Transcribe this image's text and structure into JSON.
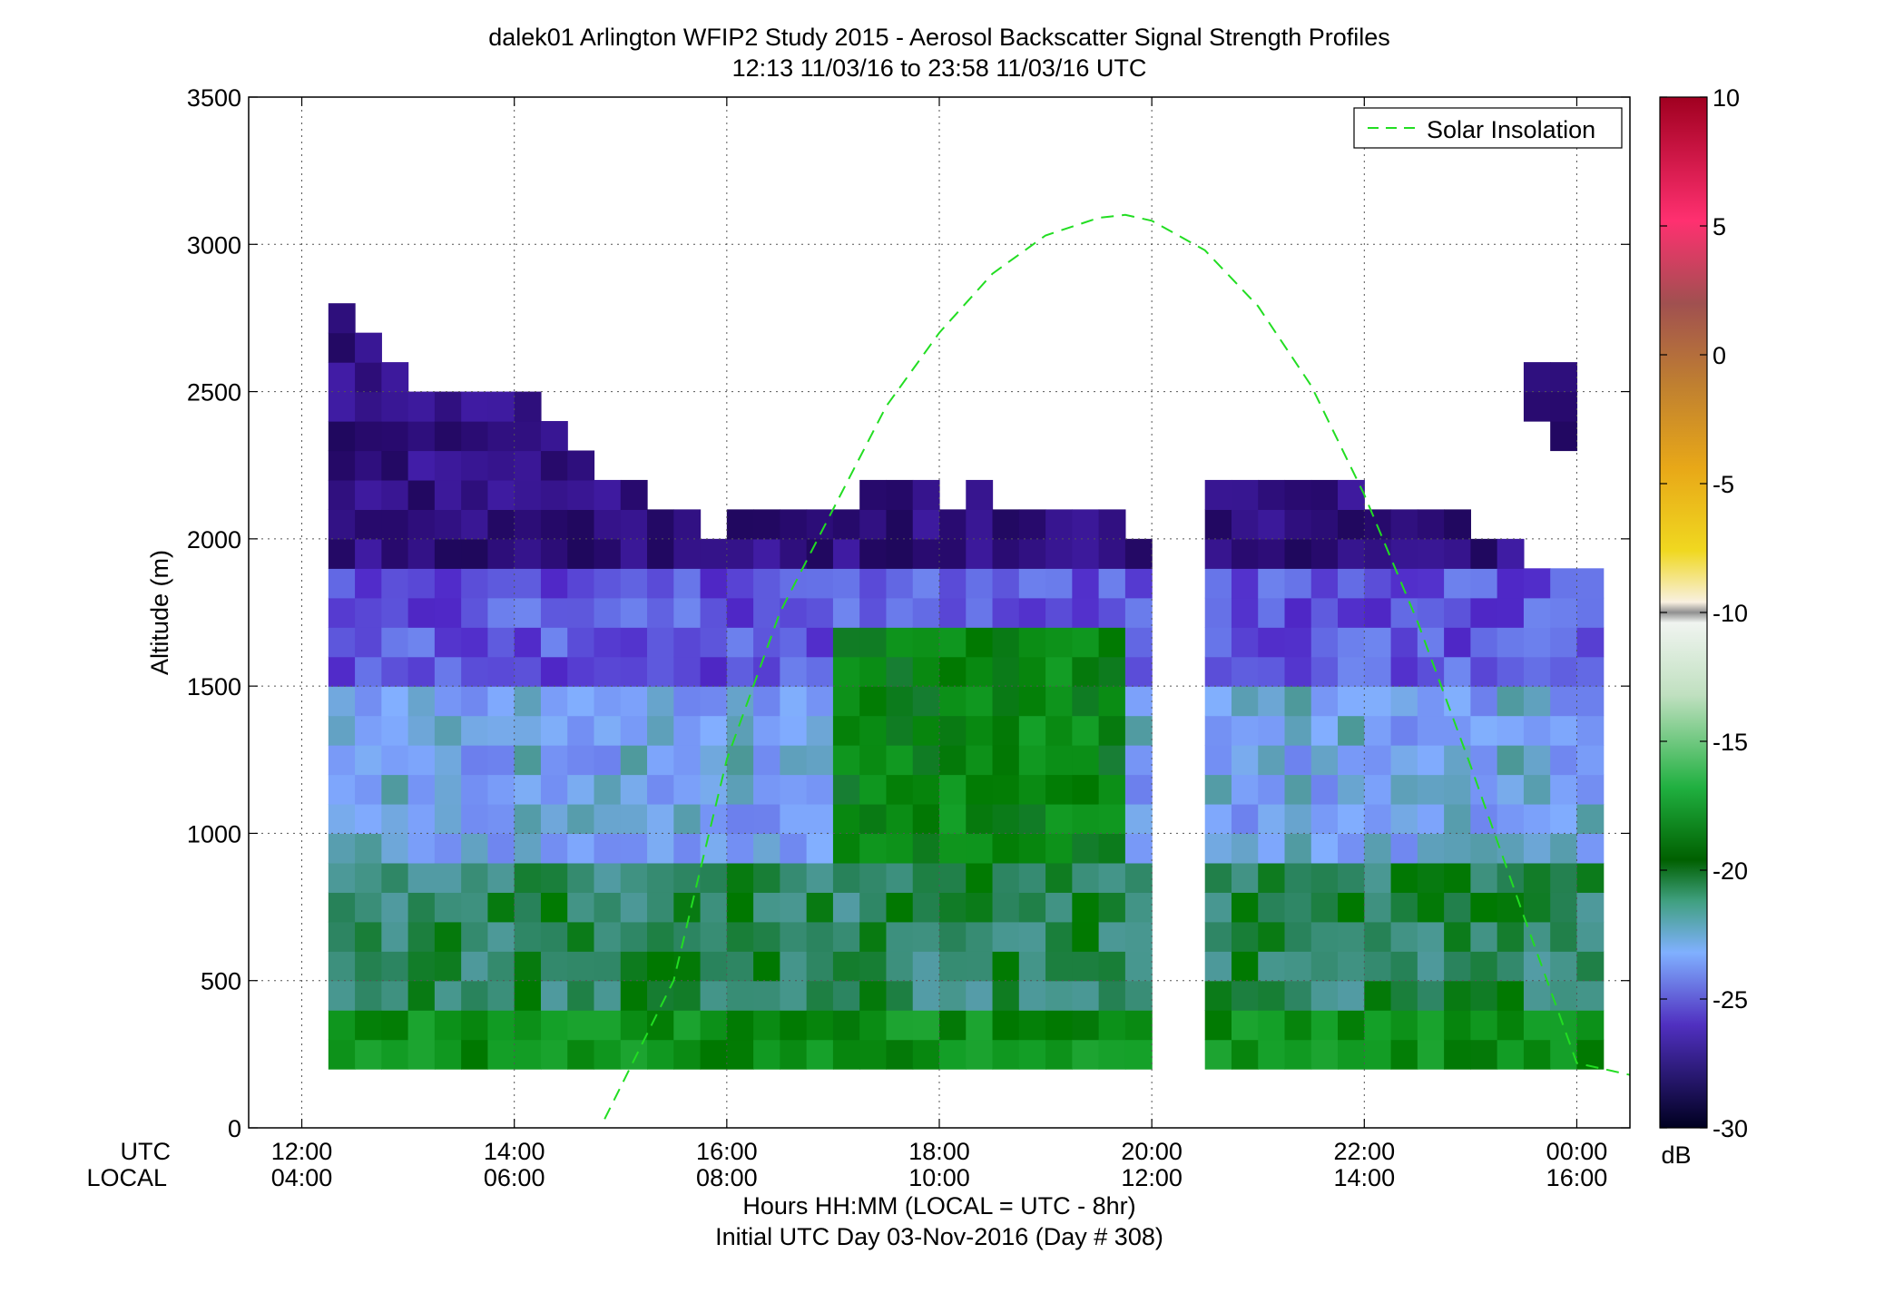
{
  "chart_data": {
    "type": "heatmap",
    "title": "dalek01 Arlington WFIP2 Study 2015 - Aerosol Backscatter Signal Strength Profiles",
    "subtitle": "12:13 11/03/16 to 23:58 11/03/16  UTC",
    "xlabel": "Hours HH:MM  (LOCAL = UTC - 8hr)",
    "xlabel2": "Initial UTC Day 03-Nov-2016 (Day # 308)",
    "ylabel": "Altitude (m)",
    "xlim_hours": [
      11.5,
      24.5
    ],
    "ylim": [
      0,
      3500
    ],
    "y_ticks": [
      0,
      500,
      1000,
      1500,
      2000,
      2500,
      3000,
      3500
    ],
    "x_ticks_hours": [
      12,
      14,
      16,
      18,
      20,
      22,
      24
    ],
    "x_tick_row_labels": {
      "utc": "UTC",
      "local": "LOCAL"
    },
    "x_tick_labels_utc": [
      "12:00",
      "14:00",
      "16:00",
      "18:00",
      "20:00",
      "22:00",
      "00:00"
    ],
    "x_tick_labels_local": [
      "04:00",
      "06:00",
      "08:00",
      "10:00",
      "12:00",
      "14:00",
      "16:00"
    ],
    "grid": true,
    "legend": {
      "position": "top-right",
      "entries": [
        {
          "name": "Solar Insolation",
          "style": "dashed",
          "color": "#22dd22"
        }
      ]
    },
    "colorbar": {
      "label": "dB",
      "range": [
        -30,
        10
      ],
      "ticks": [
        10,
        5,
        0,
        -5,
        -10,
        -15,
        -20,
        -25,
        -30
      ],
      "tick_labels": [
        "10",
        "5",
        "0",
        "-5",
        "-10",
        "-15",
        "-20",
        "-25",
        "-30"
      ]
    },
    "heatmap": {
      "x_start_hour": 12.25,
      "x_step_hours": 0.25,
      "y_start_m": 200,
      "y_step_m": 100,
      "missing_columns_hours": [
        19.75,
        20.0
      ],
      "column_top_m": [
        2800,
        2700,
        2600,
        2500,
        2500,
        2500,
        2500,
        2500,
        2400,
        2300,
        2200,
        2200,
        2100,
        2100,
        2000,
        2100,
        2100,
        2100,
        2100,
        2100,
        2200,
        2200,
        2200,
        2100,
        2200,
        2100,
        2100,
        2100,
        2100,
        2100,
        2000,
        null,
        null,
        2200,
        2200,
        2200,
        2200,
        2200,
        2200,
        2100,
        2100,
        2100,
        2100,
        2000,
        2000,
        1900,
        1900,
        1900
      ],
      "upper_cap": [
        {
          "hour_from": 23.5,
          "hour_to": 24.0,
          "bottom_m": 2300,
          "top_m": 2600
        }
      ],
      "layers_top_down_dB": [
        {
          "top_m": 3500,
          "bottom_m": 1900,
          "value_dB": -27
        },
        {
          "top_m": 1900,
          "bottom_m": 1500,
          "value_dB": -24
        },
        {
          "top_m": 1500,
          "bottom_m": 900,
          "value_dB": -22
        },
        {
          "top_m": 900,
          "bottom_m": 400,
          "value_dB": -20
        },
        {
          "top_m": 400,
          "bottom_m": 200,
          "value_dB": -18
        }
      ],
      "daytime_green_region": {
        "hour_from": 17.0,
        "hour_to": 19.75,
        "top_m": 1700,
        "value_dB": -18
      }
    },
    "solar_insolation": {
      "curve_hours": [
        14.85,
        15.5,
        16.0,
        16.5,
        17.0,
        17.5,
        18.0,
        18.5,
        19.0,
        19.5,
        19.75,
        20.0,
        20.5,
        21.0,
        21.5,
        22.0,
        22.5,
        23.0,
        23.5,
        24.0,
        24.5
      ],
      "curve_altitude_equiv_m": [
        30,
        500,
        1250,
        1750,
        2100,
        2450,
        2700,
        2900,
        3030,
        3090,
        3100,
        3080,
        2980,
        2790,
        2520,
        2150,
        1720,
        1230,
        720,
        220,
        180
      ]
    }
  }
}
